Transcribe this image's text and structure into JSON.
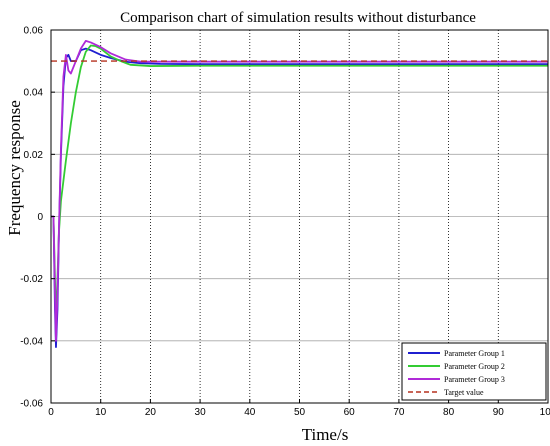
{
  "chart_data": {
    "type": "line",
    "title": "Comparison chart of simulation results without disturbance",
    "xlabel": "Time/s",
    "ylabel": "Frequency response",
    "xlim": [
      0,
      100
    ],
    "ylim": [
      -0.06,
      0.06
    ],
    "xticks": [
      0,
      10,
      20,
      30,
      40,
      50,
      60,
      70,
      80,
      90,
      100
    ],
    "xtick_labels": [
      "0",
      "10",
      "20",
      "30",
      "40",
      "50",
      "60",
      "70",
      "80",
      "90",
      "100"
    ],
    "yticks": [
      -0.06,
      -0.04,
      -0.02,
      0,
      0.02,
      0.04,
      0.06
    ],
    "ytick_labels": [
      "-0.06",
      "-0.04",
      "-0.02",
      "0",
      "0.02",
      "0.04",
      "0.06"
    ],
    "grid": {
      "vertical": "dotted",
      "horizontal": "solid"
    },
    "legend_position": "bottom-right",
    "series": [
      {
        "name": "Parameter Group 1",
        "color": "#1f1fd0",
        "dash": "solid",
        "x": [
          0,
          0.5,
          0.8,
          1,
          1.3,
          1.6,
          2,
          2.5,
          3,
          3.5,
          4,
          5,
          6,
          7,
          8,
          10,
          12,
          15,
          18,
          22,
          30,
          40,
          60,
          80,
          100
        ],
        "y": [
          0,
          0,
          -0.03,
          -0.042,
          -0.03,
          -0.005,
          0.02,
          0.042,
          0.051,
          0.052,
          0.05,
          0.05,
          0.0535,
          0.054,
          0.0535,
          0.052,
          0.051,
          0.0498,
          0.0493,
          0.0491,
          0.049,
          0.049,
          0.049,
          0.049,
          0.049
        ]
      },
      {
        "name": "Parameter Group 2",
        "color": "#33cc33",
        "dash": "solid",
        "x": [
          0,
          0.5,
          0.8,
          1,
          1.3,
          1.6,
          2,
          3,
          4,
          5,
          6,
          7,
          8,
          9,
          10,
          12,
          14,
          16,
          20,
          30,
          50,
          100
        ],
        "y": [
          0,
          0,
          -0.02,
          -0.035,
          -0.02,
          -0.005,
          0.005,
          0.018,
          0.03,
          0.04,
          0.048,
          0.053,
          0.055,
          0.0548,
          0.054,
          0.0515,
          0.05,
          0.0488,
          0.0484,
          0.0485,
          0.0485,
          0.0485
        ]
      },
      {
        "name": "Parameter Group 3",
        "color": "#b02ad8",
        "dash": "solid",
        "x": [
          0,
          0.5,
          0.8,
          1,
          1.3,
          1.6,
          2,
          2.5,
          3,
          3.5,
          4,
          5,
          6,
          7,
          8,
          10,
          12,
          15,
          18,
          22,
          30,
          50,
          100
        ],
        "y": [
          0,
          0,
          -0.025,
          -0.04,
          -0.025,
          -0.004,
          0.022,
          0.045,
          0.052,
          0.047,
          0.046,
          0.05,
          0.054,
          0.0565,
          0.056,
          0.0545,
          0.0525,
          0.0505,
          0.0498,
          0.0498,
          0.0498,
          0.0498,
          0.0498
        ]
      },
      {
        "name": "Target value",
        "color": "#b5301f",
        "dash": "dashed",
        "x": [
          0,
          100
        ],
        "y": [
          0.05,
          0.05
        ]
      }
    ]
  }
}
